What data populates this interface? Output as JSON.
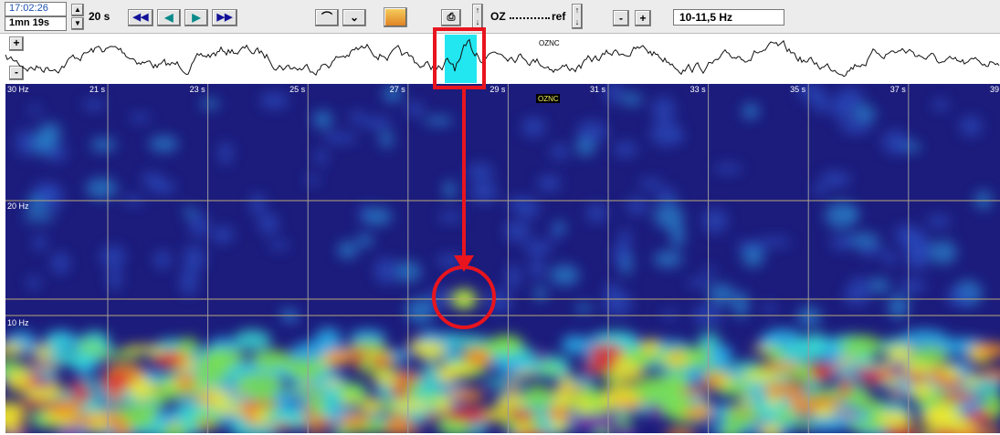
{
  "toolbar": {
    "time": "17:02:26",
    "duration": "1mn 19s",
    "window": "20 s",
    "channel": "OZ",
    "reference": "ref",
    "zoom_out": "-",
    "zoom_in": "+",
    "band": "10-11,5 Hz"
  },
  "trace": {
    "gain_up": "+",
    "gain_down": "-",
    "channel_label": "OZNC"
  },
  "spectrogram": {
    "channel_label": "OZNC",
    "time_labels": [
      "21 s",
      "23 s",
      "25 s",
      "27 s",
      "29 s",
      "31 s",
      "33 s",
      "35 s",
      "37 s",
      "39"
    ],
    "frequency_labels": [
      "30 Hz",
      "20 Hz",
      "10 Hz"
    ]
  }
}
